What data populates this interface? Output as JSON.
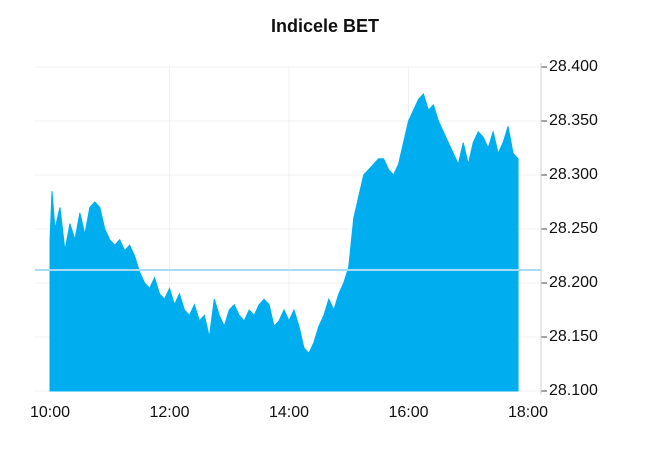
{
  "chart_data": {
    "type": "area",
    "title": "Indicele BET",
    "color": "#00aeef",
    "reference_value": 28212,
    "reference_color": "#a8dcf5",
    "x": [
      "10:00",
      "10:02",
      "10:05",
      "10:10",
      "10:15",
      "10:20",
      "10:25",
      "10:30",
      "10:35",
      "10:40",
      "10:45",
      "10:50",
      "10:55",
      "11:00",
      "11:05",
      "11:10",
      "11:15",
      "11:20",
      "11:25",
      "11:30",
      "11:35",
      "11:40",
      "11:45",
      "11:50",
      "11:55",
      "12:00",
      "12:05",
      "12:10",
      "12:15",
      "12:20",
      "12:25",
      "12:30",
      "12:35",
      "12:40",
      "12:45",
      "12:50",
      "12:55",
      "13:00",
      "13:05",
      "13:10",
      "13:15",
      "13:20",
      "13:25",
      "13:30",
      "13:35",
      "13:40",
      "13:45",
      "13:50",
      "13:55",
      "14:00",
      "14:05",
      "14:10",
      "14:15",
      "14:20",
      "14:25",
      "14:30",
      "14:35",
      "14:40",
      "14:45",
      "14:50",
      "14:55",
      "15:00",
      "15:05",
      "15:10",
      "15:15",
      "15:20",
      "15:25",
      "15:30",
      "15:35",
      "15:40",
      "15:45",
      "15:50",
      "15:55",
      "16:00",
      "16:05",
      "16:10",
      "16:15",
      "16:20",
      "16:25",
      "16:30",
      "16:35",
      "16:40",
      "16:45",
      "16:50",
      "16:55",
      "17:00",
      "17:05",
      "17:10",
      "17:15",
      "17:20",
      "17:25",
      "17:30",
      "17:35",
      "17:40",
      "17:45",
      "17:50"
    ],
    "values": [
      28240,
      28285,
      28250,
      28270,
      28230,
      28255,
      28240,
      28265,
      28245,
      28270,
      28275,
      28270,
      28250,
      28240,
      28235,
      28240,
      28230,
      28235,
      28225,
      28210,
      28200,
      28195,
      28205,
      28190,
      28185,
      28195,
      28180,
      28190,
      28175,
      28170,
      28180,
      28165,
      28170,
      28150,
      28185,
      28170,
      28160,
      28175,
      28180,
      28170,
      28165,
      28175,
      28170,
      28180,
      28185,
      28180,
      28160,
      28165,
      28175,
      28165,
      28175,
      28160,
      28140,
      28135,
      28145,
      28160,
      28170,
      28185,
      28175,
      28190,
      28200,
      28215,
      28260,
      28280,
      28300,
      28305,
      28310,
      28315,
      28315,
      28305,
      28300,
      28310,
      28330,
      28350,
      28360,
      28370,
      28375,
      28360,
      28365,
      28350,
      28340,
      28330,
      28320,
      28310,
      28330,
      28310,
      28330,
      28340,
      28335,
      28325,
      28340,
      28320,
      28330,
      28345,
      28320,
      28315
    ],
    "xlim": [
      "10:00",
      "18:00"
    ],
    "xticks": [
      "10:00",
      "12:00",
      "14:00",
      "16:00",
      "18:00"
    ],
    "ylim": [
      28100,
      28400
    ],
    "yticks": [
      {
        "value": 28100,
        "label": "28.100"
      },
      {
        "value": 28150,
        "label": "28.150"
      },
      {
        "value": 28200,
        "label": "28.200"
      },
      {
        "value": 28250,
        "label": "28.250"
      },
      {
        "value": 28300,
        "label": "28.300"
      },
      {
        "value": 28350,
        "label": "28.350"
      },
      {
        "value": 28400,
        "label": "28.400"
      }
    ],
    "grid": true
  }
}
